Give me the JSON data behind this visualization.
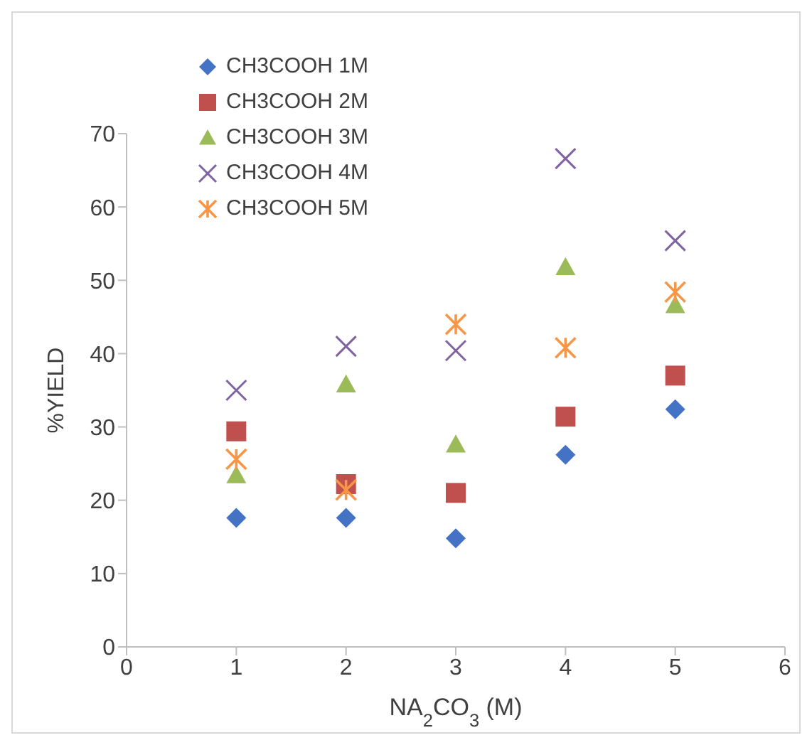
{
  "chart_data": {
    "type": "scatter",
    "xlabel": "NA$_{2}$CO$_{3}$ (M)",
    "ylabel": "%YIELD",
    "x": [
      1,
      2,
      3,
      4,
      5
    ],
    "xlim": [
      0,
      6
    ],
    "xticks": [
      0,
      1,
      2,
      3,
      4,
      5,
      6
    ],
    "ylim": [
      0,
      70
    ],
    "yticks": [
      0,
      10,
      20,
      30,
      40,
      50,
      60,
      70
    ],
    "legend": "top left",
    "grid": false,
    "series": [
      {
        "name": "CH3COOH 1M",
        "color": "#4472c4",
        "marker": "diamond",
        "values": [
          17.6,
          17.6,
          14.8,
          26.2,
          32.4
        ]
      },
      {
        "name": "CH3COOH 2M",
        "color": "#c0504d",
        "marker": "square",
        "values": [
          29.4,
          22.2,
          21,
          31.4,
          37
        ]
      },
      {
        "name": "CH3COOH 3M",
        "color": "#9bbb59",
        "marker": "triangle",
        "values": [
          23.4,
          35.8,
          27.6,
          51.8,
          46.6
        ]
      },
      {
        "name": "CH3COOH 4M",
        "color": "#8064a2",
        "marker": "cross",
        "values": [
          35,
          41,
          40.4,
          66.6,
          55.4
        ]
      },
      {
        "name": "CH3COOH 5M",
        "color": "#f79646",
        "values": [
          25.6,
          21.4,
          44,
          40.8,
          48.4
        ]
      }
    ]
  }
}
